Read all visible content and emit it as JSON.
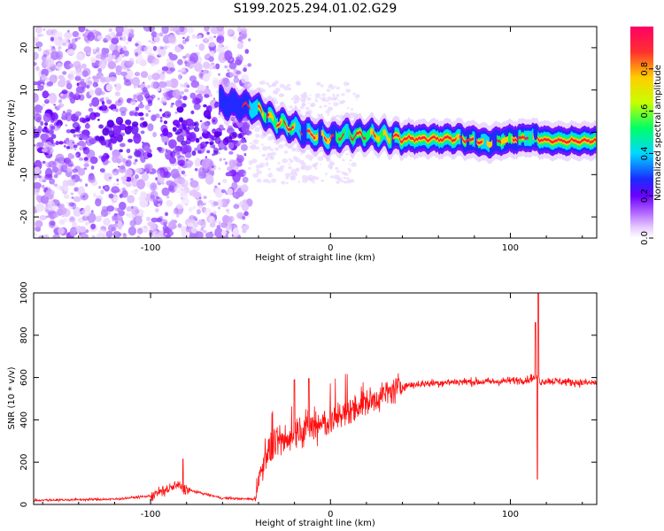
{
  "figure_title": "S199.2025.294.01.02.G29",
  "chart_data": [
    {
      "type": "heatmap",
      "name": "spectrogram",
      "xlabel": "Height of straight line (km)",
      "ylabel": "Frequency (Hz)",
      "xlim": [
        -165,
        148
      ],
      "ylim": [
        -25,
        25
      ],
      "x_ticks": [
        -100,
        0,
        100
      ],
      "y_ticks": [
        -20,
        -10,
        0,
        10,
        20
      ],
      "colorbar": {
        "label": "Normalized spectral amplitude",
        "range": [
          0,
          1
        ],
        "ticks": [
          0.0,
          0.2,
          0.4,
          0.6,
          0.8
        ],
        "colormap": [
          "#ffffff",
          "#e6ccff",
          "#b266ff",
          "#6a00ff",
          "#1a2cff",
          "#00d8ff",
          "#00ff66",
          "#c8ff00",
          "#ffcc00",
          "#ff3030",
          "#ff0066"
        ]
      },
      "ridge": {
        "x": [
          -65,
          -55,
          -45,
          -40,
          -35,
          -30,
          -25,
          -20,
          -15,
          -10,
          -5,
          0,
          5,
          10,
          15,
          20,
          30,
          40,
          50,
          60,
          70,
          80,
          85,
          90,
          95,
          100,
          105,
          110,
          115,
          120,
          130,
          140,
          148
        ],
        "y": [
          8,
          6.5,
          6,
          5.5,
          4,
          2.5,
          1.5,
          1,
          0,
          -0.5,
          -1,
          -1.5,
          -1,
          -0.5,
          -1,
          -0.5,
          -1,
          -1.5,
          -1.5,
          -1.5,
          -1.5,
          -2,
          -2.5,
          -2.5,
          -2,
          -1.5,
          -1.5,
          -1,
          -1.5,
          -2,
          -2,
          -2,
          -2
        ]
      }
    },
    {
      "type": "line",
      "name": "snr",
      "xlabel": "Height of straight line (km)",
      "ylabel": "SNR (10 * v/v)",
      "xlim": [
        -165,
        148
      ],
      "ylim": [
        0,
        1000
      ],
      "x_ticks": [
        -100,
        0,
        100
      ],
      "y_ticks": [
        0,
        200,
        400,
        600,
        800,
        1000
      ],
      "color": "#ff1010",
      "trend": {
        "x": [
          -165,
          -120,
          -100,
          -85,
          -80,
          -60,
          -42,
          -40,
          -35,
          -20,
          -10,
          0,
          10,
          20,
          30,
          40,
          50,
          60,
          70,
          80,
          90,
          100,
          110,
          112,
          115,
          117,
          120,
          130,
          140,
          148
        ],
        "y": [
          20,
          25,
          40,
          90,
          70,
          30,
          25,
          120,
          250,
          330,
          360,
          390,
          440,
          480,
          520,
          560,
          570,
          575,
          580,
          580,
          580,
          585,
          590,
          600,
          590,
          580,
          585,
          580,
          575,
          575
        ]
      },
      "peaks": [
        {
          "x": -82,
          "y": 215
        },
        {
          "x": -20,
          "y": 590
        },
        {
          "x": -12,
          "y": 595
        },
        {
          "x": 114,
          "y": 860
        },
        {
          "x": 115.5,
          "y": 1000
        },
        {
          "x": 115,
          "y": 120
        }
      ]
    }
  ]
}
